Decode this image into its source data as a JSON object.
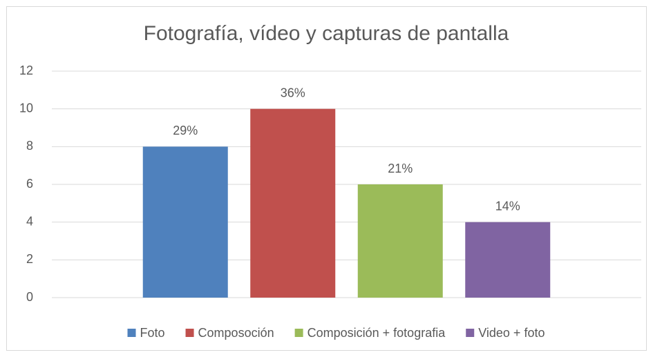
{
  "chart_data": {
    "type": "bar",
    "title": "Fotografía, vídeo y capturas de pantalla",
    "categories": [
      null
    ],
    "series": [
      {
        "name": "Foto",
        "color": "#4f81bd",
        "values": [
          8
        ],
        "value_labels": [
          "29%"
        ]
      },
      {
        "name": "Composoción",
        "color": "#c0504d",
        "values": [
          10
        ],
        "value_labels": [
          "36%"
        ]
      },
      {
        "name": "Composición + fotografia",
        "color": "#9bbb59",
        "values": [
          6
        ],
        "value_labels": [
          "21%"
        ]
      },
      {
        "name": "Video + foto",
        "color": "#8064a2",
        "values": [
          4
        ],
        "value_labels": [
          "14%"
        ]
      }
    ],
    "ylim": [
      0,
      12
    ],
    "yticks": [
      0,
      2,
      4,
      6,
      8,
      10,
      12
    ],
    "grid": true,
    "legend": "bottom"
  }
}
